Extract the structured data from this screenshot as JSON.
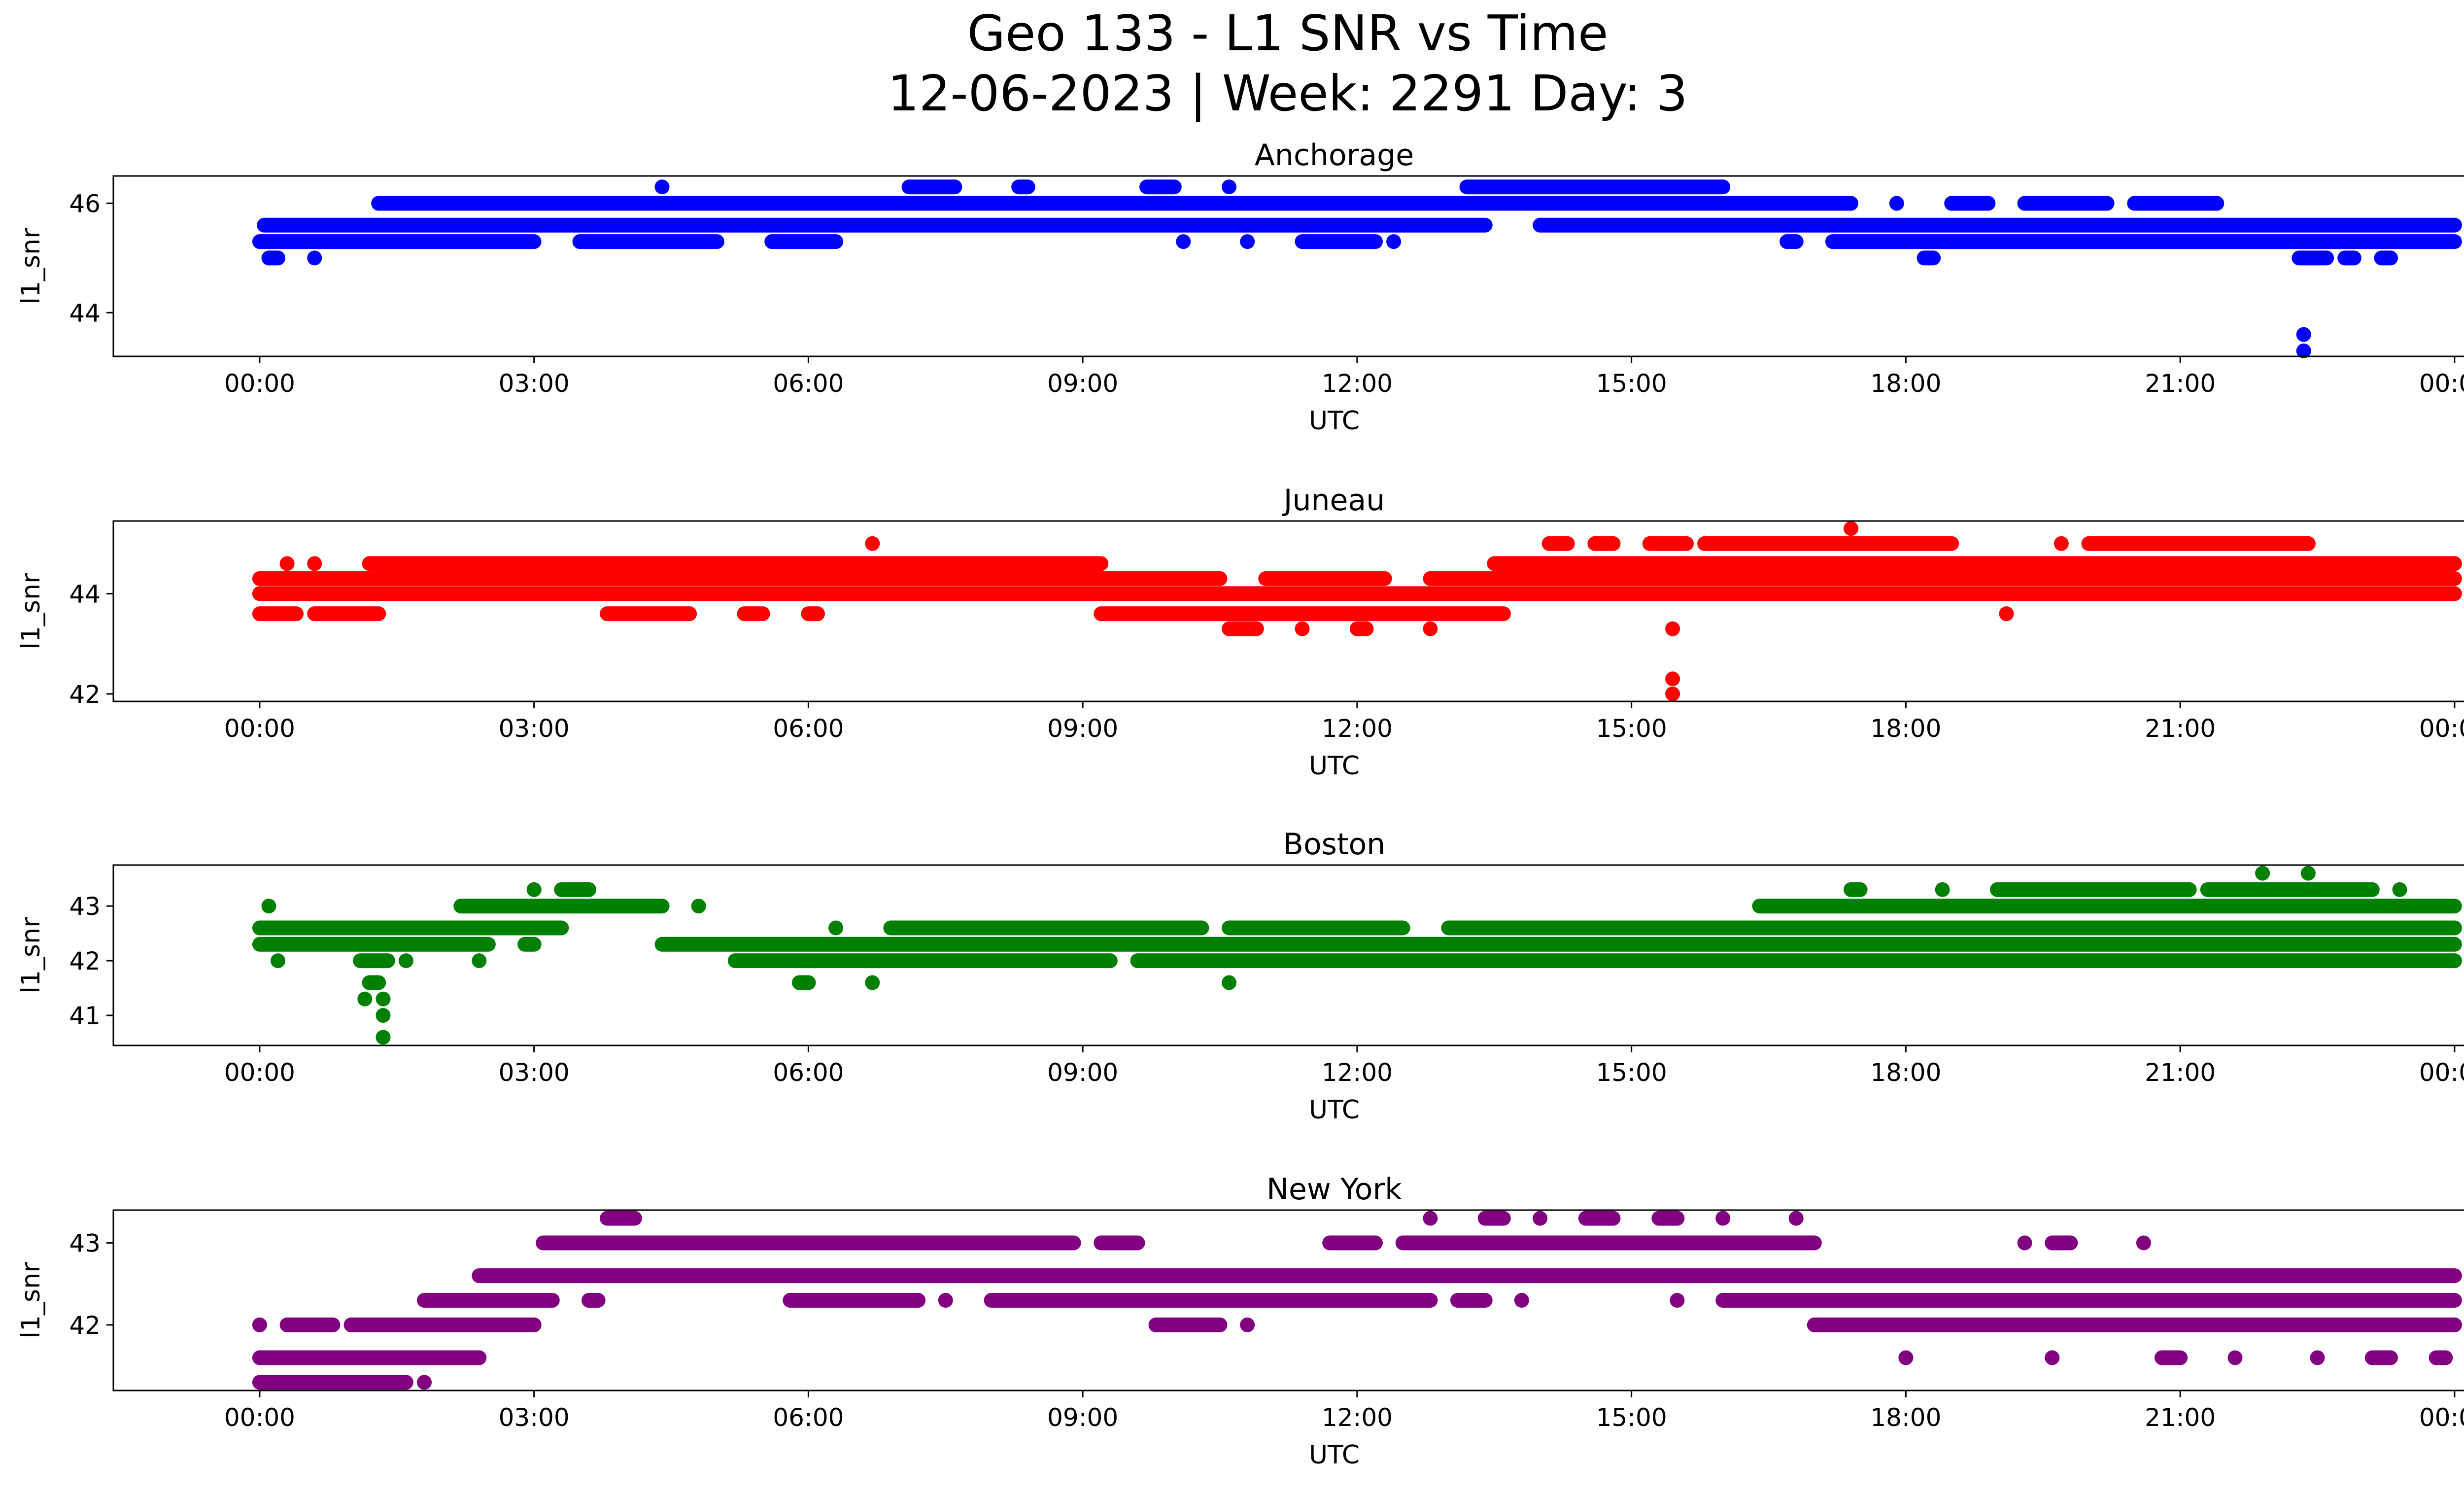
{
  "title_line1": "Geo 133 - L1 SNR vs Time",
  "title_line2": "12-06-2023 | Week: 2291 Day: 3",
  "chart_data": [
    {
      "type": "scatter",
      "title": "Anchorage",
      "xlabel": "UTC",
      "ylabel": "l1_snr",
      "color": "#0000ff",
      "x_ticks_hours": [
        0,
        3,
        6,
        9,
        12,
        15,
        18,
        21,
        24
      ],
      "x_tick_labels": [
        "00:00",
        "03:00",
        "06:00",
        "09:00",
        "12:00",
        "15:00",
        "18:00",
        "21:00",
        "00:00"
      ],
      "y_ticks": [
        44,
        46
      ],
      "ylim": [
        43.2,
        46.5
      ],
      "levels": [
        {
          "y": 46.3,
          "segments": [
            [
              4.4,
              4.4
            ],
            [
              7.1,
              7.6
            ],
            [
              8.3,
              8.4
            ],
            [
              9.7,
              10.0
            ],
            [
              10.6,
              10.6
            ],
            [
              13.2,
              16.0
            ]
          ]
        },
        {
          "y": 46.0,
          "segments": [
            [
              1.3,
              17.4
            ],
            [
              17.9,
              17.9
            ],
            [
              18.5,
              18.9
            ],
            [
              19.3,
              20.2
            ],
            [
              20.5,
              21.4
            ]
          ]
        },
        {
          "y": 45.6,
          "segments": [
            [
              0.05,
              13.4
            ],
            [
              14.0,
              24.0
            ]
          ]
        },
        {
          "y": 45.3,
          "segments": [
            [
              0.0,
              3.0
            ],
            [
              3.5,
              5.0
            ],
            [
              5.6,
              6.3
            ],
            [
              10.1,
              10.1
            ],
            [
              10.8,
              10.8
            ],
            [
              11.4,
              12.2
            ],
            [
              12.4,
              12.4
            ],
            [
              16.7,
              16.8
            ],
            [
              17.2,
              24.0
            ]
          ]
        },
        {
          "y": 45.0,
          "segments": [
            [
              0.1,
              0.2
            ],
            [
              0.6,
              0.6
            ],
            [
              18.2,
              18.3
            ],
            [
              22.3,
              22.6
            ],
            [
              22.8,
              22.9
            ],
            [
              23.2,
              23.3
            ]
          ]
        }
      ],
      "points": [
        [
          22.35,
          43.6
        ],
        [
          22.35,
          43.3
        ]
      ]
    },
    {
      "type": "scatter",
      "title": "Juneau",
      "xlabel": "UTC",
      "ylabel": "l1_snr",
      "color": "#ff0000",
      "x_ticks_hours": [
        0,
        3,
        6,
        9,
        12,
        15,
        18,
        21,
        24
      ],
      "x_tick_labels": [
        "00:00",
        "03:00",
        "06:00",
        "09:00",
        "12:00",
        "15:00",
        "18:00",
        "21:00",
        "00:00"
      ],
      "y_ticks": [
        42,
        44
      ],
      "ylim": [
        41.85,
        45.45
      ],
      "levels": [
        {
          "y": 45.3,
          "segments": [
            [
              17.4,
              17.4
            ]
          ]
        },
        {
          "y": 45.0,
          "segments": [
            [
              6.7,
              6.7
            ],
            [
              14.1,
              14.3
            ],
            [
              14.6,
              14.8
            ],
            [
              15.2,
              15.6
            ],
            [
              15.8,
              18.5
            ],
            [
              19.7,
              19.7
            ],
            [
              20.0,
              22.4
            ]
          ]
        },
        {
          "y": 44.6,
          "segments": [
            [
              0.3,
              0.3
            ],
            [
              0.6,
              0.6
            ],
            [
              1.2,
              9.2
            ],
            [
              13.5,
              24.0
            ]
          ]
        },
        {
          "y": 44.3,
          "segments": [
            [
              0.0,
              10.5
            ],
            [
              11.0,
              12.3
            ],
            [
              12.8,
              24.0
            ]
          ]
        },
        {
          "y": 44.0,
          "segments": [
            [
              0.0,
              24.0
            ]
          ]
        },
        {
          "y": 43.6,
          "segments": [
            [
              0.0,
              0.4
            ],
            [
              0.6,
              1.3
            ],
            [
              3.8,
              4.7
            ],
            [
              5.3,
              5.5
            ],
            [
              6.0,
              6.1
            ],
            [
              9.2,
              13.6
            ],
            [
              19.1,
              19.1
            ]
          ]
        },
        {
          "y": 43.3,
          "segments": [
            [
              10.6,
              10.9
            ],
            [
              11.4,
              11.4
            ],
            [
              12.0,
              12.1
            ],
            [
              12.8,
              12.8
            ]
          ]
        }
      ],
      "points": [
        [
          15.45,
          43.3
        ],
        [
          15.45,
          42.3
        ],
        [
          15.45,
          42.0
        ]
      ]
    },
    {
      "type": "scatter",
      "title": "Boston",
      "xlabel": "UTC",
      "ylabel": "l1_snr",
      "color": "#008000",
      "x_ticks_hours": [
        0,
        3,
        6,
        9,
        12,
        15,
        18,
        21,
        24
      ],
      "x_tick_labels": [
        "00:00",
        "03:00",
        "06:00",
        "09:00",
        "12:00",
        "15:00",
        "18:00",
        "21:00",
        "00:00"
      ],
      "y_ticks": [
        41,
        42,
        43
      ],
      "ylim": [
        40.45,
        43.75
      ],
      "levels": [
        {
          "y": 43.6,
          "segments": [
            [
              21.9,
              21.9
            ],
            [
              22.4,
              22.4
            ]
          ]
        },
        {
          "y": 43.3,
          "segments": [
            [
              3.0,
              3.0
            ],
            [
              3.3,
              3.6
            ],
            [
              17.4,
              17.5
            ],
            [
              18.4,
              18.4
            ],
            [
              19.0,
              21.1
            ],
            [
              21.3,
              23.1
            ],
            [
              23.4,
              23.4
            ]
          ]
        },
        {
          "y": 43.0,
          "segments": [
            [
              0.1,
              0.1
            ],
            [
              2.2,
              4.4
            ],
            [
              4.8,
              4.8
            ],
            [
              16.4,
              24.0
            ]
          ]
        },
        {
          "y": 42.6,
          "segments": [
            [
              0.0,
              3.3
            ],
            [
              6.3,
              6.3
            ],
            [
              6.9,
              10.3
            ],
            [
              10.6,
              12.5
            ],
            [
              13.0,
              24.0
            ]
          ]
        },
        {
          "y": 42.3,
          "segments": [
            [
              0.0,
              2.5
            ],
            [
              2.9,
              3.0
            ],
            [
              4.4,
              24.0
            ]
          ]
        },
        {
          "y": 42.0,
          "segments": [
            [
              0.2,
              0.2
            ],
            [
              1.1,
              1.4
            ],
            [
              1.6,
              1.6
            ],
            [
              2.4,
              2.4
            ],
            [
              5.2,
              9.3
            ],
            [
              9.6,
              24.0
            ]
          ]
        },
        {
          "y": 41.6,
          "segments": [
            [
              1.2,
              1.3
            ],
            [
              5.9,
              6.0
            ],
            [
              6.7,
              6.7
            ],
            [
              10.6,
              10.6
            ]
          ]
        }
      ],
      "points": [
        [
          1.15,
          41.3
        ],
        [
          1.35,
          41.3
        ],
        [
          1.35,
          41.0
        ],
        [
          1.35,
          40.6
        ]
      ]
    },
    {
      "type": "scatter",
      "title": "New York",
      "xlabel": "UTC",
      "ylabel": "l1_snr",
      "color": "#800080",
      "x_ticks_hours": [
        0,
        3,
        6,
        9,
        12,
        15,
        18,
        21,
        24
      ],
      "x_tick_labels": [
        "00:00",
        "03:00",
        "06:00",
        "09:00",
        "12:00",
        "15:00",
        "18:00",
        "21:00",
        "00:00"
      ],
      "y_ticks": [
        42,
        43
      ],
      "ylim": [
        41.2,
        43.4
      ],
      "levels": [
        {
          "y": 43.3,
          "segments": [
            [
              3.8,
              4.1
            ],
            [
              12.8,
              12.8
            ],
            [
              13.4,
              13.6
            ],
            [
              14.0,
              14.0
            ],
            [
              14.5,
              14.8
            ],
            [
              15.3,
              15.5
            ],
            [
              16.0,
              16.0
            ],
            [
              16.8,
              16.8
            ]
          ]
        },
        {
          "y": 43.0,
          "segments": [
            [
              3.1,
              8.9
            ],
            [
              9.2,
              9.6
            ],
            [
              11.7,
              12.2
            ],
            [
              12.5,
              17.0
            ],
            [
              19.3,
              19.3
            ],
            [
              19.6,
              19.8
            ],
            [
              20.6,
              20.6
            ]
          ]
        },
        {
          "y": 42.6,
          "segments": [
            [
              2.4,
              24.0
            ]
          ]
        },
        {
          "y": 42.3,
          "segments": [
            [
              1.8,
              3.2
            ],
            [
              3.6,
              3.7
            ],
            [
              5.8,
              7.2
            ],
            [
              7.5,
              7.5
            ],
            [
              8.0,
              12.8
            ],
            [
              13.1,
              13.4
            ],
            [
              13.8,
              13.8
            ],
            [
              15.5,
              15.5
            ],
            [
              16.0,
              24.0
            ]
          ]
        },
        {
          "y": 42.0,
          "segments": [
            [
              0.0,
              0.0
            ],
            [
              0.3,
              0.8
            ],
            [
              1.0,
              3.0
            ],
            [
              9.8,
              10.5
            ],
            [
              10.8,
              10.8
            ],
            [
              17.0,
              24.0
            ]
          ]
        },
        {
          "y": 41.6,
          "segments": [
            [
              0.0,
              2.4
            ],
            [
              18.0,
              18.0
            ],
            [
              19.6,
              19.6
            ],
            [
              20.8,
              21.0
            ],
            [
              21.6,
              21.6
            ],
            [
              22.5,
              22.5
            ],
            [
              23.1,
              23.3
            ],
            [
              23.8,
              23.9
            ]
          ]
        },
        {
          "y": 41.3,
          "segments": [
            [
              0.0,
              1.6
            ],
            [
              1.8,
              1.8
            ]
          ]
        }
      ],
      "points": []
    }
  ]
}
